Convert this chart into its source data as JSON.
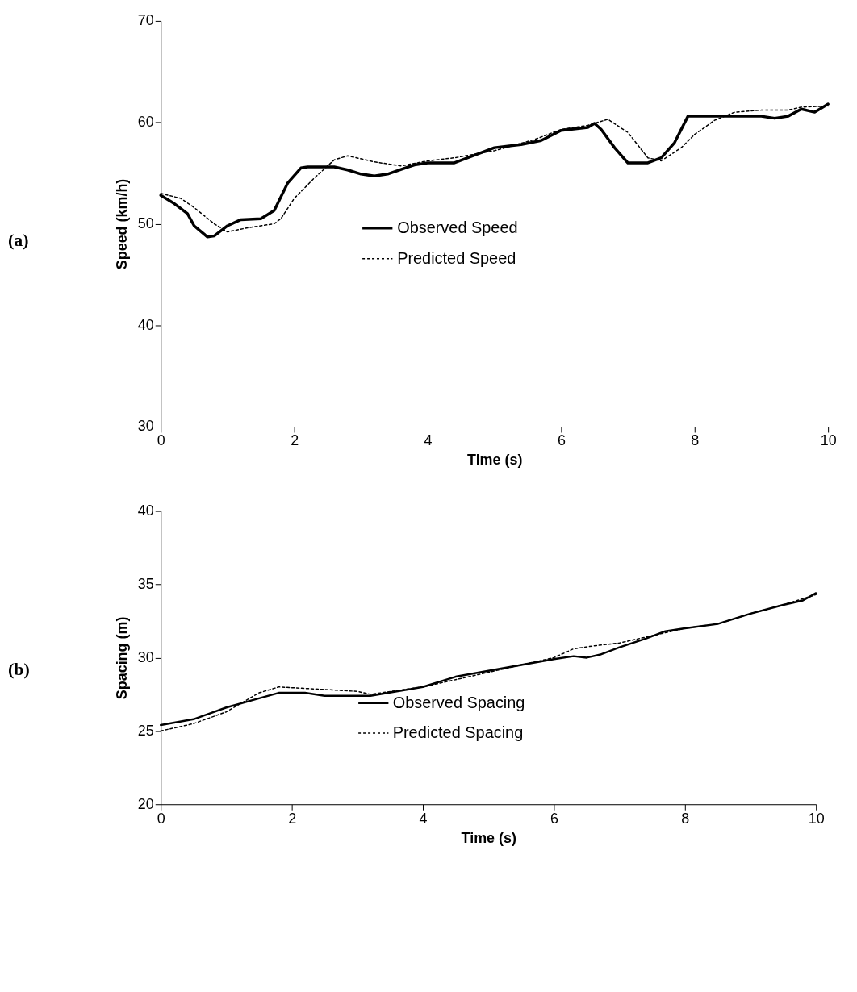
{
  "chart_data": [
    {
      "type": "line",
      "xlabel": "Time (s)",
      "ylabel": "Speed (km/h)",
      "annotations": [
        "(a)"
      ],
      "xlim": [
        0,
        10
      ],
      "xticks": [
        0,
        2,
        4,
        6,
        8,
        10
      ],
      "ylim": [
        30,
        70
      ],
      "yticks": [
        30,
        40,
        50,
        60,
        70
      ],
      "grid": false,
      "legend": "center",
      "series": [
        {
          "name": "Observed Speed",
          "color": "#000000",
          "line_style": "solid",
          "x": [
            0,
            0.2,
            0.4,
            0.5,
            0.7,
            0.8,
            1.0,
            1.2,
            1.5,
            1.7,
            1.9,
            2.1,
            2.2,
            2.6,
            2.8,
            3.0,
            3.2,
            3.4,
            3.8,
            4.0,
            4.4,
            4.8,
            5.0,
            5.4,
            5.7,
            6.0,
            6.4,
            6.5,
            6.6,
            6.8,
            7.0,
            7.3,
            7.5,
            7.7,
            7.9,
            8.1,
            8.4,
            8.8,
            9.0,
            9.2,
            9.4,
            9.6,
            9.8,
            10
          ],
          "values": [
            52.8,
            52,
            51,
            49.8,
            48.7,
            48.8,
            49.8,
            50.4,
            50.5,
            51.3,
            54,
            55.5,
            55.6,
            55.6,
            55.3,
            54.9,
            54.7,
            54.9,
            55.8,
            56,
            56,
            57,
            57.5,
            57.8,
            58.2,
            59.2,
            59.5,
            59.9,
            59.3,
            57.5,
            56,
            56,
            56.5,
            58,
            60.6,
            60.6,
            60.6,
            60.6,
            60.6,
            60.4,
            60.6,
            61.3,
            61,
            61.8
          ]
        },
        {
          "name": "Predicted Speed",
          "color": "#000000",
          "line_style": "dotted",
          "x": [
            0,
            0.3,
            0.5,
            0.8,
            1.0,
            1.3,
            1.7,
            1.8,
            2.0,
            2.3,
            2.6,
            2.8,
            3.2,
            3.6,
            4.0,
            4.4,
            5.0,
            5.6,
            6.0,
            6.4,
            6.7,
            7.0,
            7.3,
            7.5,
            7.8,
            8.0,
            8.3,
            8.6,
            9.0,
            9.4,
            9.6,
            10
          ],
          "values": [
            53,
            52.5,
            51.6,
            50,
            49.2,
            49.6,
            50,
            50.5,
            52.5,
            54.5,
            56.3,
            56.7,
            56.1,
            55.7,
            56.2,
            56.5,
            57.2,
            58.3,
            59.3,
            59.7,
            60.3,
            59,
            56.5,
            56.2,
            57.5,
            58.8,
            60.2,
            61,
            61.2,
            61.2,
            61.5,
            61.6
          ]
        }
      ]
    },
    {
      "type": "line",
      "xlabel": "Time (s)",
      "ylabel": "Spacing (m)",
      "annotations": [
        "(b)"
      ],
      "xlim": [
        0,
        10
      ],
      "xticks": [
        0,
        2,
        4,
        6,
        8,
        10
      ],
      "ylim": [
        20,
        40
      ],
      "yticks": [
        20,
        25,
        30,
        35,
        40
      ],
      "grid": false,
      "legend": "center",
      "series": [
        {
          "name": "Observed Spacing",
          "color": "#000000",
          "line_style": "solid",
          "x": [
            0,
            0.5,
            1.0,
            1.4,
            1.8,
            2.2,
            2.5,
            3.2,
            3.6,
            4.0,
            4.5,
            5.0,
            5.5,
            6.0,
            6.3,
            6.5,
            6.7,
            7.0,
            7.4,
            7.7,
            8.0,
            8.5,
            9.0,
            9.5,
            9.8,
            10
          ],
          "values": [
            25.4,
            25.8,
            26.6,
            27.1,
            27.6,
            27.6,
            27.4,
            27.4,
            27.7,
            28.0,
            28.7,
            29.1,
            29.5,
            29.9,
            30.1,
            30.0,
            30.2,
            30.7,
            31.3,
            31.8,
            32.0,
            32.3,
            33.0,
            33.6,
            33.9,
            34.4
          ]
        },
        {
          "name": "Predicted Spacing",
          "color": "#000000",
          "line_style": "dotted",
          "x": [
            0,
            0.5,
            1.0,
            1.5,
            1.8,
            2.2,
            3.0,
            3.2,
            4.0,
            4.5,
            5.0,
            5.5,
            6.0,
            6.3,
            6.6,
            7.0,
            7.4,
            8.0,
            8.5,
            9.0,
            9.5,
            10
          ],
          "values": [
            25.0,
            25.5,
            26.3,
            27.6,
            28.0,
            27.9,
            27.7,
            27.5,
            28.0,
            28.5,
            29.0,
            29.5,
            30.0,
            30.6,
            30.8,
            31.0,
            31.4,
            32.0,
            32.3,
            33.0,
            33.6,
            34.3
          ]
        }
      ]
    }
  ]
}
